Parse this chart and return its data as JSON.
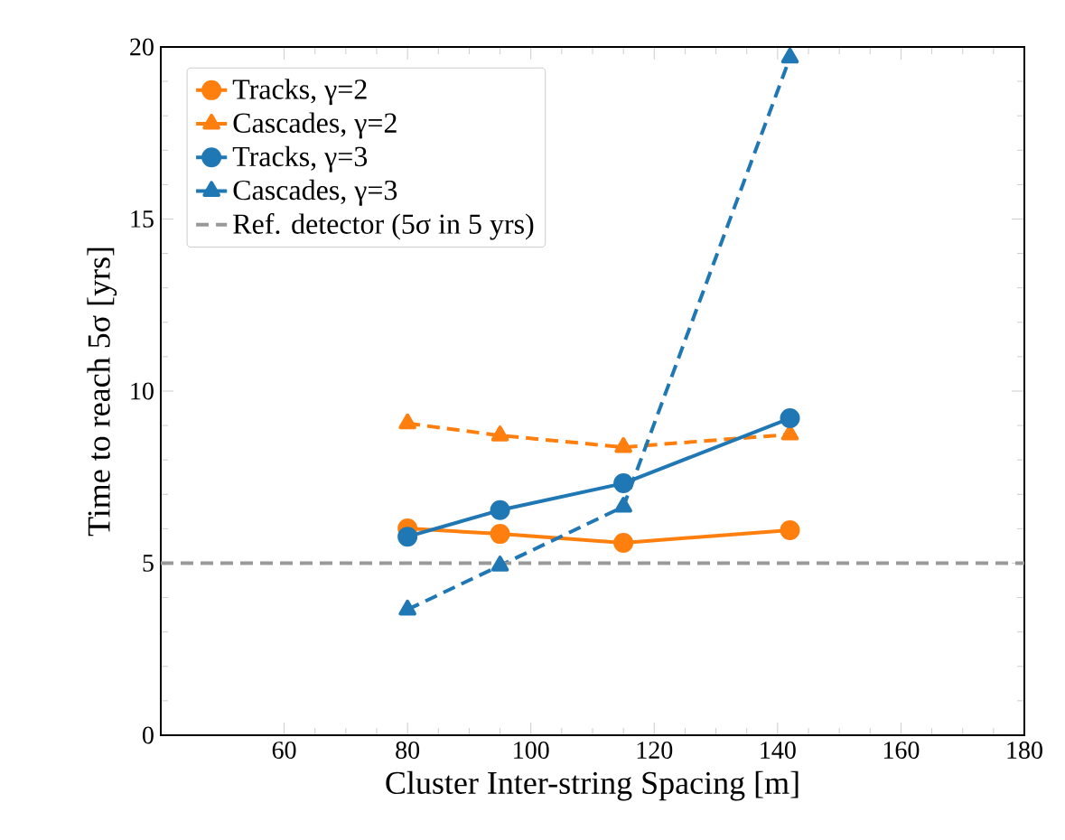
{
  "chart_data": {
    "type": "line",
    "xlabel": "Cluster Inter-string Spacing [m]",
    "ylabel": "Time to reach 5σ [yrs]",
    "x": [
      80,
      95,
      115,
      142
    ],
    "series": [
      {
        "name": "Tracks, γ=2",
        "color": "#ff7f0e",
        "marker": "circle",
        "line_style": "solid",
        "values": [
          6.01,
          5.85,
          5.59,
          5.96
        ]
      },
      {
        "name": "Cascades, γ=2",
        "color": "#ff7f0e",
        "marker": "triangle",
        "line_style": "dashed",
        "values": [
          9.06,
          8.71,
          8.37,
          8.74
        ]
      },
      {
        "name": "Tracks, γ=3",
        "color": "#1f77b4",
        "marker": "circle",
        "line_style": "solid",
        "values": [
          5.77,
          6.54,
          7.32,
          9.21
        ]
      },
      {
        "name": "Cascades, γ=3",
        "color": "#1f77b4",
        "marker": "triangle",
        "line_style": "dashed",
        "values": [
          3.65,
          4.93,
          6.64,
          19.69
        ]
      }
    ],
    "ref_lines": [
      {
        "axis": "y",
        "value": 5,
        "label": "Ref. detector (5σ in 5 yrs)",
        "color": "#999999",
        "line_style": "dashed"
      }
    ],
    "xlim": [
      40,
      180
    ],
    "xticks": [
      60,
      80,
      100,
      120,
      140,
      160,
      180
    ],
    "ylim": [
      0,
      20
    ],
    "yticks": [
      0,
      5,
      10,
      15,
      20
    ],
    "grid": false,
    "legend": "top left"
  }
}
